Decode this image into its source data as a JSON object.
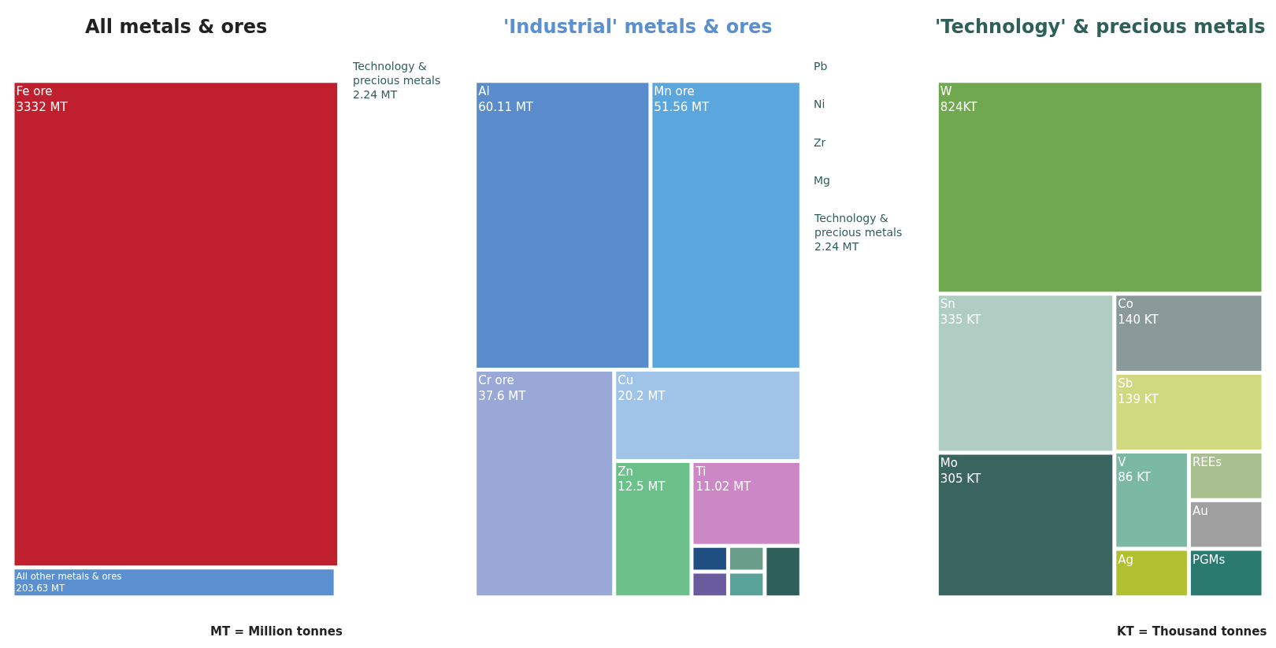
{
  "chart_data": [
    {
      "type": "other",
      "title": "All metals & ores",
      "categories": [
        "Fe ore",
        "All other metals & ores",
        "Technology & precious metals"
      ],
      "values": [
        3332,
        203.63,
        2.24
      ],
      "value_labels": [
        "3332 MT",
        "203.63 MT",
        "2.24 MT"
      ],
      "colors": [
        "#c0202e",
        "#5a8fd0",
        "#2f5f5a"
      ],
      "annotations": [
        "MT = Million tonnes"
      ]
    },
    {
      "type": "other",
      "title": "'Industrial' metals & ores",
      "categories": [
        "Al",
        "Mn ore",
        "Cr ore",
        "Cu",
        "Zn",
        "Ti",
        "Pb",
        "Ni",
        "Zr",
        "Mg",
        "Technology & precious metals"
      ],
      "values": [
        60.11,
        51.56,
        37.6,
        20.2,
        12.5,
        11.02,
        null,
        null,
        null,
        null,
        2.24
      ],
      "value_labels": [
        "60.11 MT",
        "51.56 MT",
        "37.6 MT",
        "20.2 MT",
        "12.5 MT",
        "11.02 MT",
        null,
        null,
        null,
        null,
        "2.24 MT"
      ],
      "colors": [
        "#5a8ccc",
        "#5ba6dc",
        "#9aa8d8",
        "#9fc4e8",
        "#6cc08a",
        "#cc88c4",
        "#1f4e80",
        "#6a5a9e",
        "#6b9e8a",
        "#5aa39a",
        "#2f5f5a"
      ]
    },
    {
      "type": "other",
      "title": "'Technology' & precious metals",
      "categories": [
        "W",
        "Sn",
        "Mo",
        "Co",
        "Sb",
        "V",
        "Ag",
        "REEs",
        "Au",
        "PGMs"
      ],
      "values": [
        824,
        335,
        305,
        140,
        139,
        86,
        null,
        null,
        null,
        null
      ],
      "value_labels": [
        "824KT",
        "335 KT",
        "305 KT",
        "140 KT",
        "139 KT",
        "86 KT",
        null,
        null,
        null,
        null
      ],
      "colors": [
        "#70a850",
        "#b0cdc4",
        "#3a6460",
        "#8a9a9a",
        "#d0d880",
        "#7ab8a4",
        "#b0c030",
        "#a8c090",
        "#a0a0a0",
        "#2a7a70"
      ],
      "annotations": [
        "KT = Thousand tonnes"
      ]
    }
  ]
}
